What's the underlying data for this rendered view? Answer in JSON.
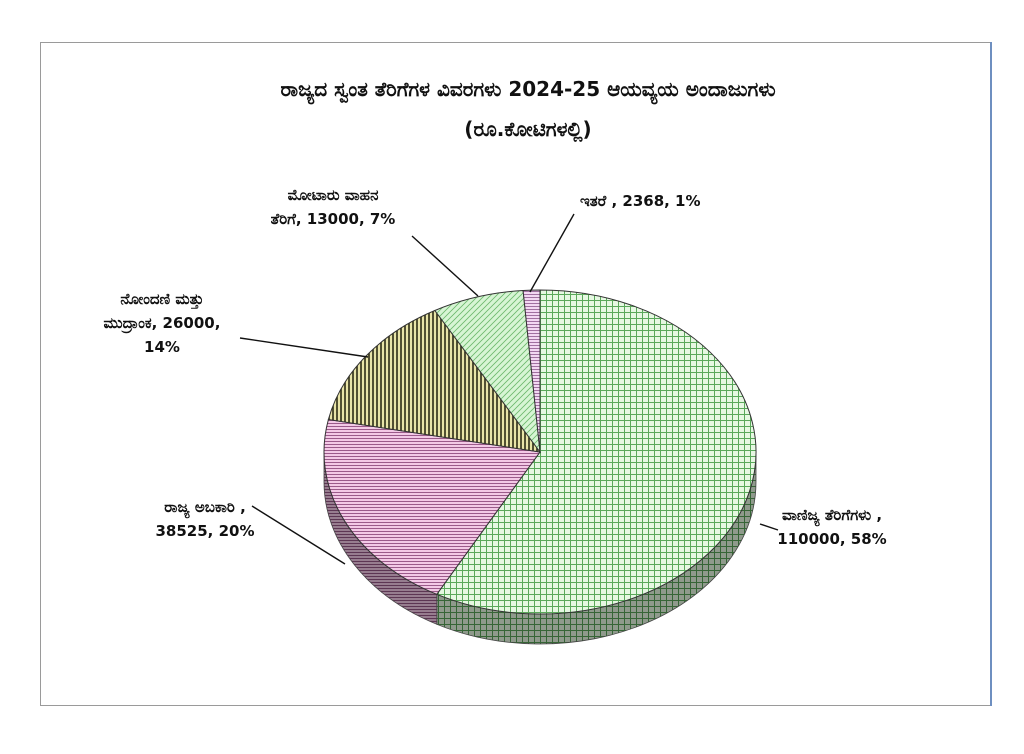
{
  "chart_data": {
    "type": "pie",
    "title": "ರಾಜ್ಯದ ಸ್ವಂತ ತೆರಿಗೆಗಳ ವಿವರಗಳು  2024-25 ಆಯವ್ಯಯ ಅಂದಾಜುಗಳು",
    "subtitle": "(ರೂ.ಕೋಟಿಗಳಲ್ಲಿ)",
    "three_d": true,
    "slices": [
      {
        "name": "ವಾಣಿಜ್ಯ ತೆರಿಗೆಗಳು",
        "value": 110000,
        "percent": "58%",
        "label_lines": [
          "ವಾಣಿಜ್ಯ ತೆರಿಗೆಗಳು ,",
          "110000, 58%"
        ],
        "color": "#e6f8e2",
        "line_color": "#5aa85a",
        "pattern": "grid"
      },
      {
        "name": "ರಾಜ್ಯ ಅಬಕಾರಿ",
        "value": 38525,
        "percent": "20%",
        "label_lines": [
          "ರಾಜ್ಯ ಅಬಕಾರಿ  ,",
          "38525, 20%"
        ],
        "color": "#f3c9e6",
        "line_color": "#9b5a8a",
        "pattern": "hlines"
      },
      {
        "name": "ನೋಂದಣಿ ಮತ್ತು ಮುದ್ರಾಂಕ",
        "value": 26000,
        "percent": "14%",
        "label_lines": [
          "ನೋಂದಣಿ ಮತ್ತು",
          "ಮುದ್ರಾಂಕ, 26000,",
          "14%"
        ],
        "color": "#e8e4a8",
        "line_color": "#2b2b14",
        "pattern": "vlines"
      },
      {
        "name": "ಮೋಟಾರು ವಾಹನ ತೆರಿಗೆ",
        "value": 13000,
        "percent": "7%",
        "label_lines": [
          "ಮೋಟಾರು ವಾಹನ",
          "ತೆರಿಗೆ, 13000, 7%"
        ],
        "color": "#d7f5d4",
        "line_color": "#6cb86c",
        "pattern": "diag"
      },
      {
        "name": "ಇತರೆ",
        "value": 2368,
        "percent": "1%",
        "label_lines": [
          "ಇತರೆ , 2368,  1%"
        ],
        "color": "#f2d8f2",
        "line_color": "#a070a0",
        "pattern": "hlines"
      }
    ]
  }
}
